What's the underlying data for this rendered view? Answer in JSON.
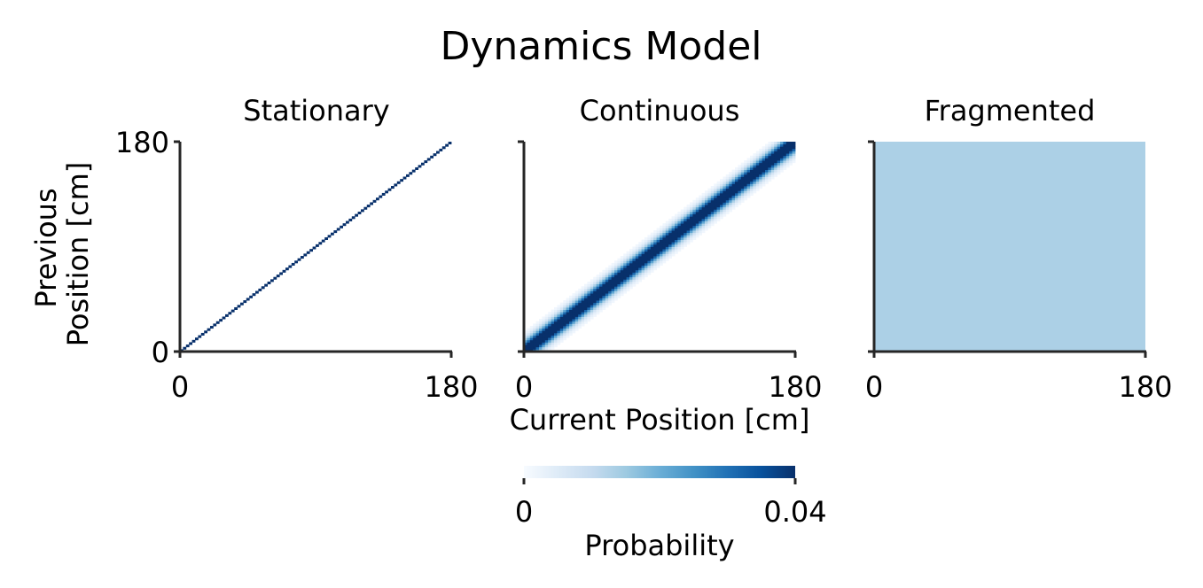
{
  "figure": {
    "title": "Dynamics Model",
    "ylabel_line1": "Previous",
    "ylabel_line2": "Position [cm]",
    "xlabel": "Current Position [cm]"
  },
  "chart_data": [
    {
      "type": "heatmap",
      "title": "Stationary",
      "x_range": [
        0,
        180
      ],
      "y_range": [
        0,
        180
      ],
      "x_ticks": [
        "0",
        "180"
      ],
      "y_ticks": [
        "0",
        "180"
      ],
      "pattern": "identity",
      "bandwidth_cm": 0,
      "uniform_probability": null,
      "colormap": "Blues",
      "color_range": [
        0,
        0.04
      ]
    },
    {
      "type": "heatmap",
      "title": "Continuous",
      "x_range": [
        0,
        180
      ],
      "y_range": [
        0,
        180
      ],
      "x_ticks": [
        "0",
        "180"
      ],
      "y_ticks": [
        "",
        ""
      ],
      "pattern": "gaussian-diagonal",
      "bandwidth_cm": 6,
      "uniform_probability": null,
      "colormap": "Blues",
      "color_range": [
        0,
        0.04
      ]
    },
    {
      "type": "heatmap",
      "title": "Fragmented",
      "x_range": [
        0,
        180
      ],
      "y_range": [
        0,
        180
      ],
      "x_ticks": [
        "0",
        "180"
      ],
      "y_ticks": [
        "",
        ""
      ],
      "pattern": "uniform",
      "bandwidth_cm": null,
      "uniform_probability": 0.0133,
      "colormap": "Blues",
      "color_range": [
        0,
        0.04
      ]
    }
  ],
  "colorbar": {
    "label": "Probability",
    "min_label": "0",
    "max_label": "0.04",
    "range": [
      0,
      0.04
    ],
    "colors": [
      "#f7fbff",
      "#deebf7",
      "#c6dbef",
      "#9ecae1",
      "#6baed6",
      "#4292c6",
      "#2171b5",
      "#08519c",
      "#08306b"
    ]
  }
}
